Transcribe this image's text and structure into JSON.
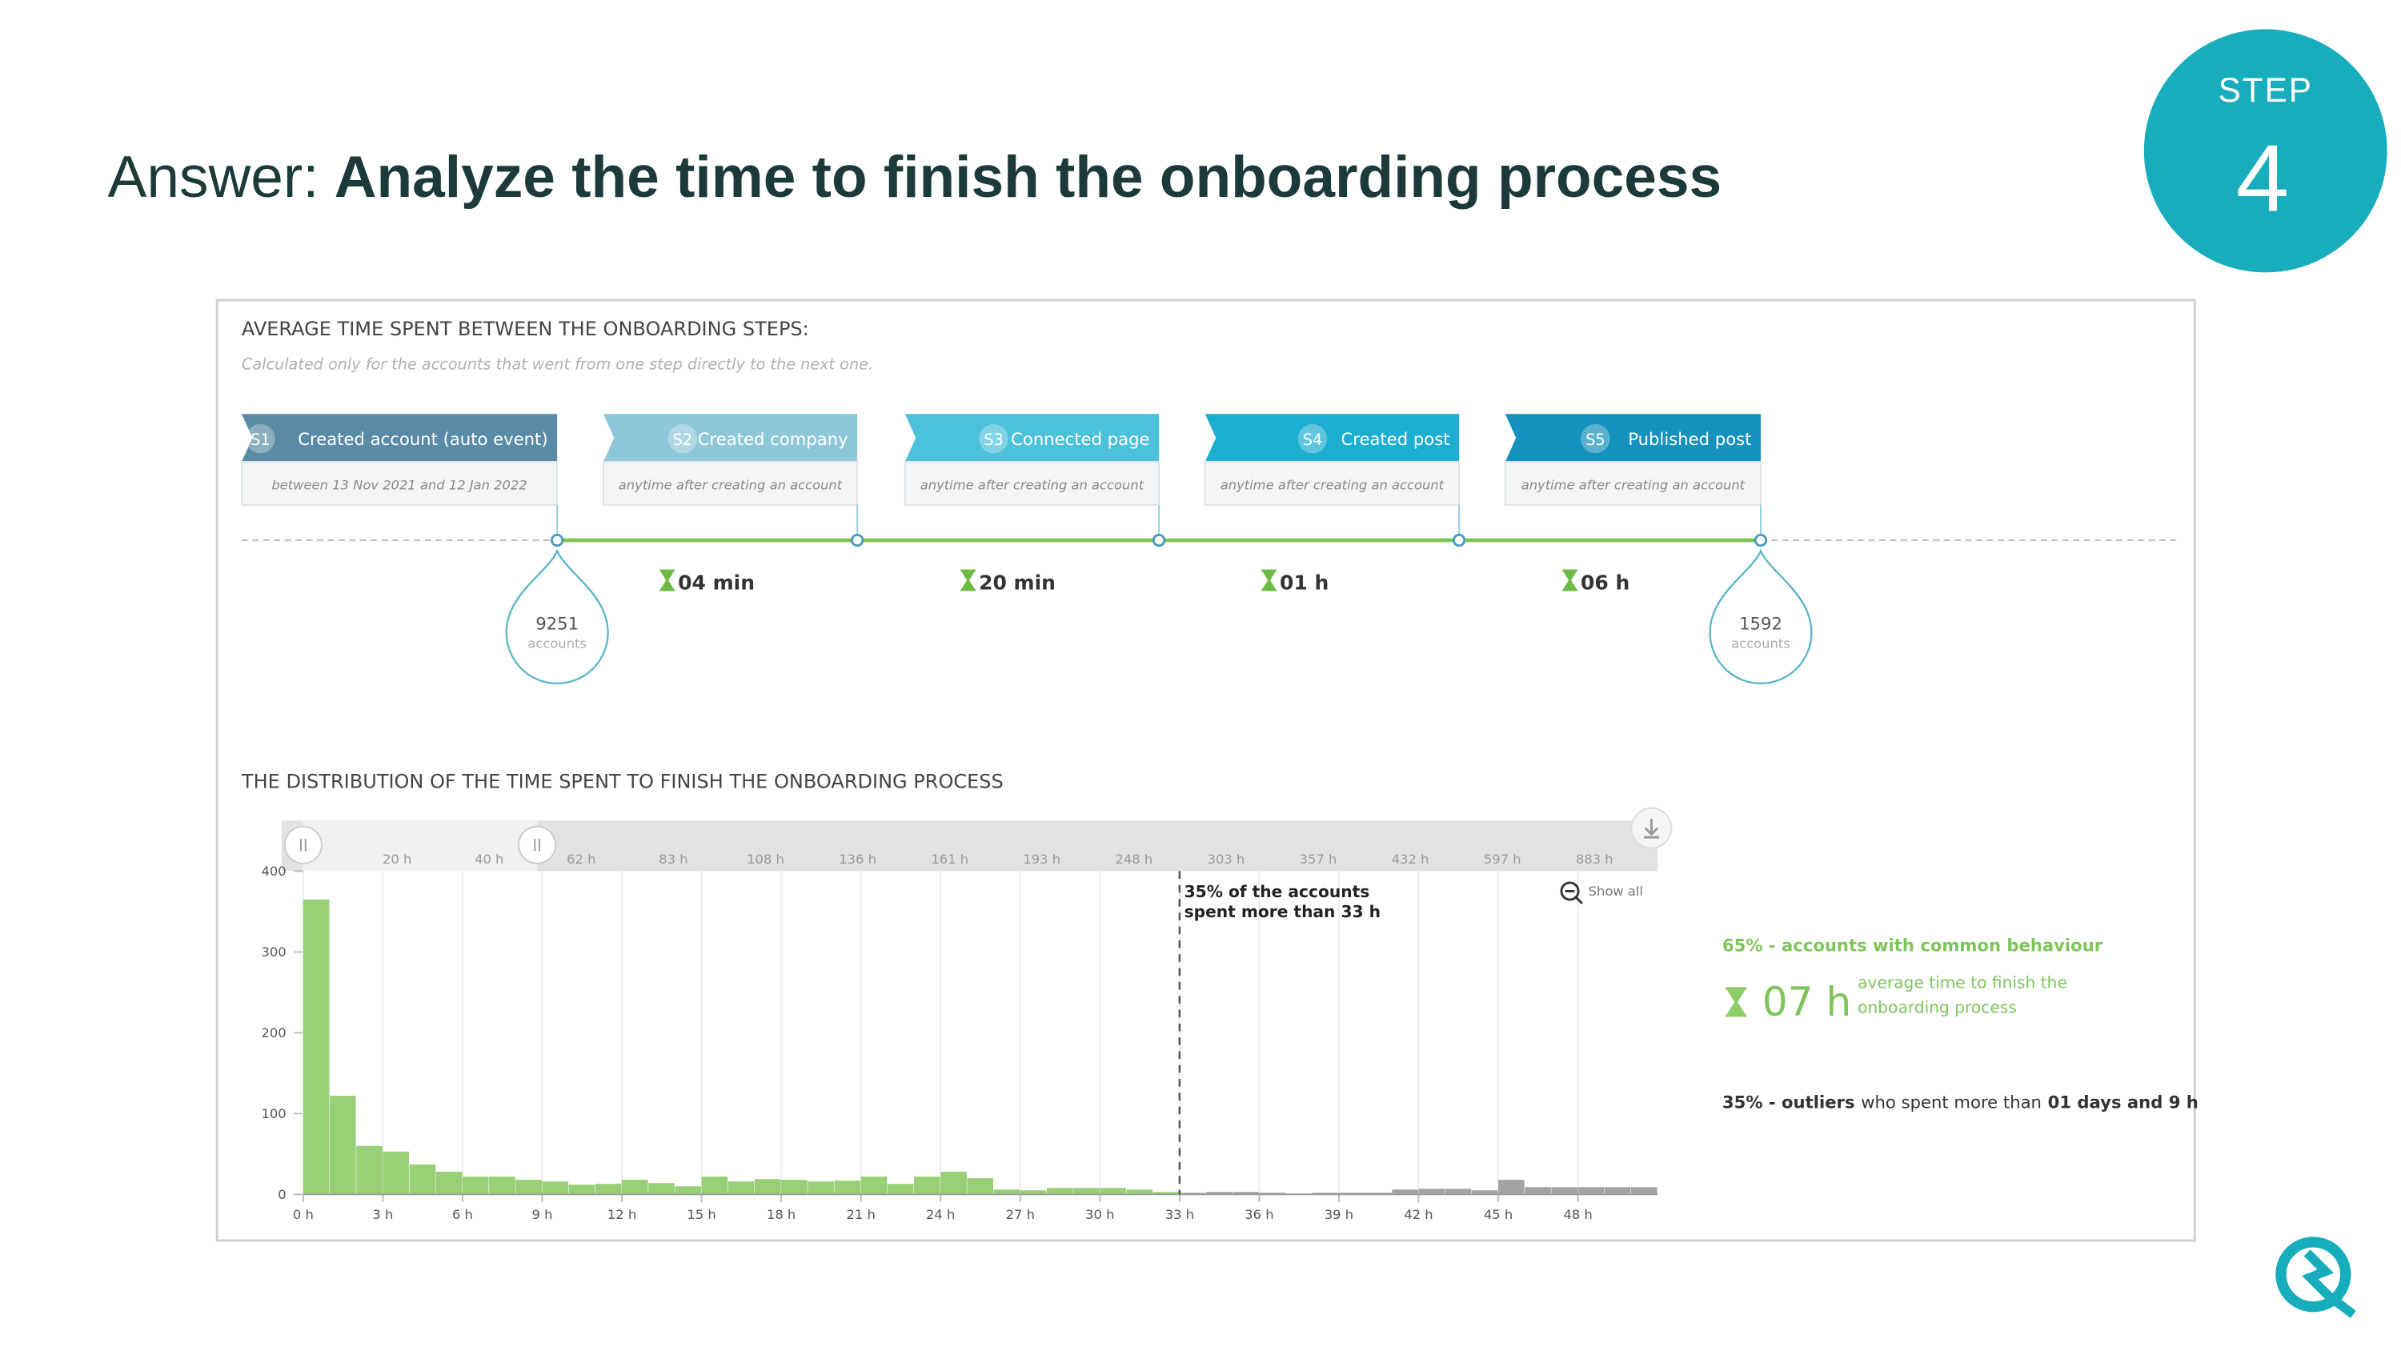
{
  "header": {
    "prefix": "Answer:",
    "title": "Analyze the time to finish the onboarding process",
    "step_label": "STEP",
    "step_number": "4"
  },
  "panel": {
    "title": "AVERAGE TIME SPENT BETWEEN THE ONBOARDING STEPS:",
    "subtitle": "Calculated only for the accounts that went from one step directly to the next one.",
    "steps": [
      {
        "id": "S1",
        "label": "Created account (auto event)",
        "note": "between 13 Nov 2021 and 12 Jan 2022",
        "color": "#5a8ba6"
      },
      {
        "id": "S2",
        "label": "Created company",
        "note": "anytime after creating an account",
        "color": "#8ec7d8"
      },
      {
        "id": "S3",
        "label": "Connected page",
        "note": "anytime after creating an account",
        "color": "#4cc1da"
      },
      {
        "id": "S4",
        "label": "Created post",
        "note": "anytime after creating an account",
        "color": "#1caed0"
      },
      {
        "id": "S5",
        "label": "Published post",
        "note": "anytime after creating an account",
        "color": "#1491bc"
      }
    ],
    "durations": [
      "04 min",
      "20 min",
      "01 h",
      "06 h"
    ],
    "start": {
      "count": 9251,
      "unit": "accounts"
    },
    "end": {
      "count": 1592,
      "unit": "accounts"
    }
  },
  "chart_data": {
    "type": "histogram",
    "title": "THE DISTRIBUTION OF THE TIME SPENT TO FINISH THE ONBOARDING PROCESS",
    "bins": [
      0,
      1,
      2,
      3,
      4,
      5,
      6,
      7,
      8,
      9,
      10,
      11,
      12,
      13,
      14,
      15,
      16,
      17,
      18,
      19,
      20,
      21,
      22,
      23,
      24,
      25,
      26,
      27,
      28,
      29,
      30,
      31,
      32,
      33,
      34,
      35,
      36,
      37,
      38,
      39,
      40,
      41,
      42,
      43,
      44,
      45,
      46,
      47,
      48,
      49,
      50,
      51
    ],
    "values": [
      365,
      122,
      60,
      53,
      37,
      28,
      22,
      22,
      18,
      16,
      12,
      13,
      18,
      14,
      10,
      22,
      16,
      19,
      18,
      16,
      17,
      22,
      13,
      22,
      28,
      20,
      6,
      5,
      8,
      8,
      8,
      6,
      3,
      2,
      3,
      3,
      2,
      1,
      2,
      2,
      2,
      6,
      7,
      7,
      5,
      18,
      9,
      9,
      9,
      9,
      9
    ],
    "color": "#97d077",
    "outlier_color": "#a3a3a3",
    "xlim": [
      0,
      51
    ],
    "xticks": [
      {
        "value": 0,
        "label": "0 h"
      },
      {
        "value": 3,
        "label": "3 h"
      },
      {
        "value": 6,
        "label": "6 h"
      },
      {
        "value": 9,
        "label": "9 h"
      },
      {
        "value": 12,
        "label": "12 h"
      },
      {
        "value": 15,
        "label": "15 h"
      },
      {
        "value": 18,
        "label": "18 h"
      },
      {
        "value": 21,
        "label": "21 h"
      },
      {
        "value": 24,
        "label": "24 h"
      },
      {
        "value": 27,
        "label": "27 h"
      },
      {
        "value": 30,
        "label": "30 h"
      },
      {
        "value": 33,
        "label": "33 h"
      },
      {
        "value": 36,
        "label": "36 h"
      },
      {
        "value": 39,
        "label": "39 h"
      },
      {
        "value": 42,
        "label": "42 h"
      },
      {
        "value": 45,
        "label": "45 h"
      },
      {
        "value": 48,
        "label": "48 h"
      }
    ],
    "ylim": [
      0,
      400
    ],
    "yticks": [
      0,
      100,
      200,
      300,
      400
    ],
    "grid": true,
    "navigator_labels": [
      "20 h",
      "40 h",
      "62 h",
      "83 h",
      "108 h",
      "136 h",
      "161 h",
      "193 h",
      "248 h",
      "303 h",
      "357 h",
      "432 h",
      "597 h",
      "883 h"
    ],
    "show_all": "Show all",
    "annotation": {
      "x": 33,
      "lines": [
        "35% of the accounts",
        "spent more than 33  h"
      ]
    }
  },
  "summary": {
    "common": "65% - accounts with common behaviour",
    "average": "07 h",
    "average_note": [
      "average time to finish the",
      "onboarding process"
    ],
    "outliers": [
      "35% - outliers",
      "who spent more than",
      "01 days and 9 h"
    ]
  }
}
